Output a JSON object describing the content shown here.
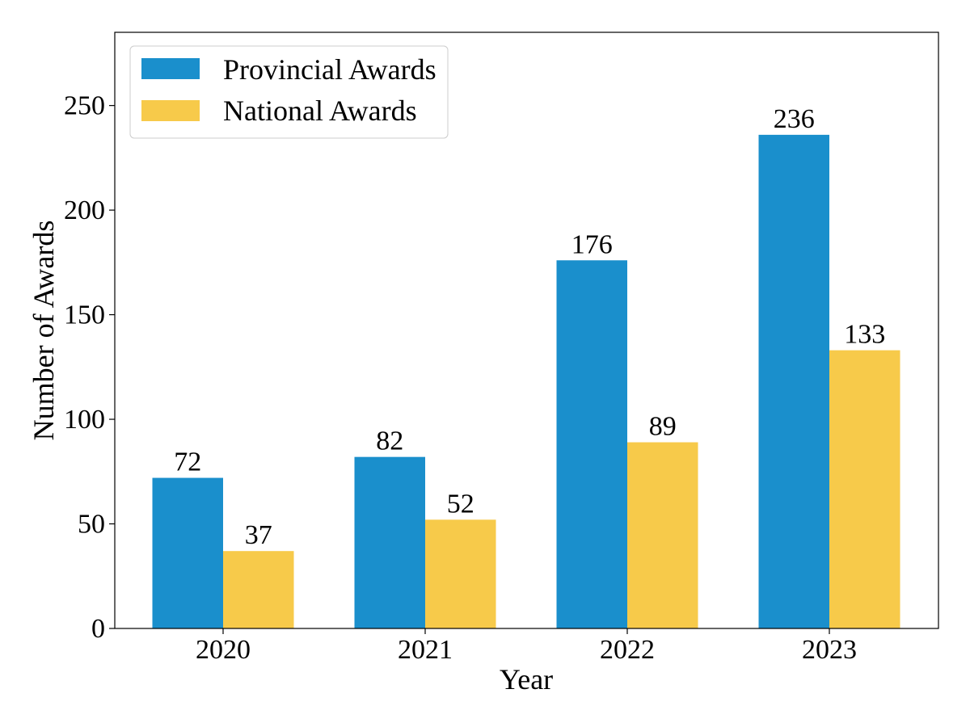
{
  "chart_data": {
    "type": "bar",
    "title": "",
    "xlabel": "Year",
    "ylabel": "Number of Awards",
    "categories": [
      "2020",
      "2021",
      "2022",
      "2023"
    ],
    "series": [
      {
        "name": "Provincial Awards",
        "values": [
          72,
          82,
          176,
          236
        ],
        "color": "#1a8fcc"
      },
      {
        "name": "National Awards",
        "values": [
          37,
          52,
          89,
          133
        ],
        "color": "#f7ca4a"
      }
    ],
    "ylim": [
      0,
      285
    ],
    "yticks": [
      0,
      50,
      100,
      150,
      200,
      250
    ],
    "grid": false,
    "legend_position": "top-left",
    "data_labels": true
  }
}
